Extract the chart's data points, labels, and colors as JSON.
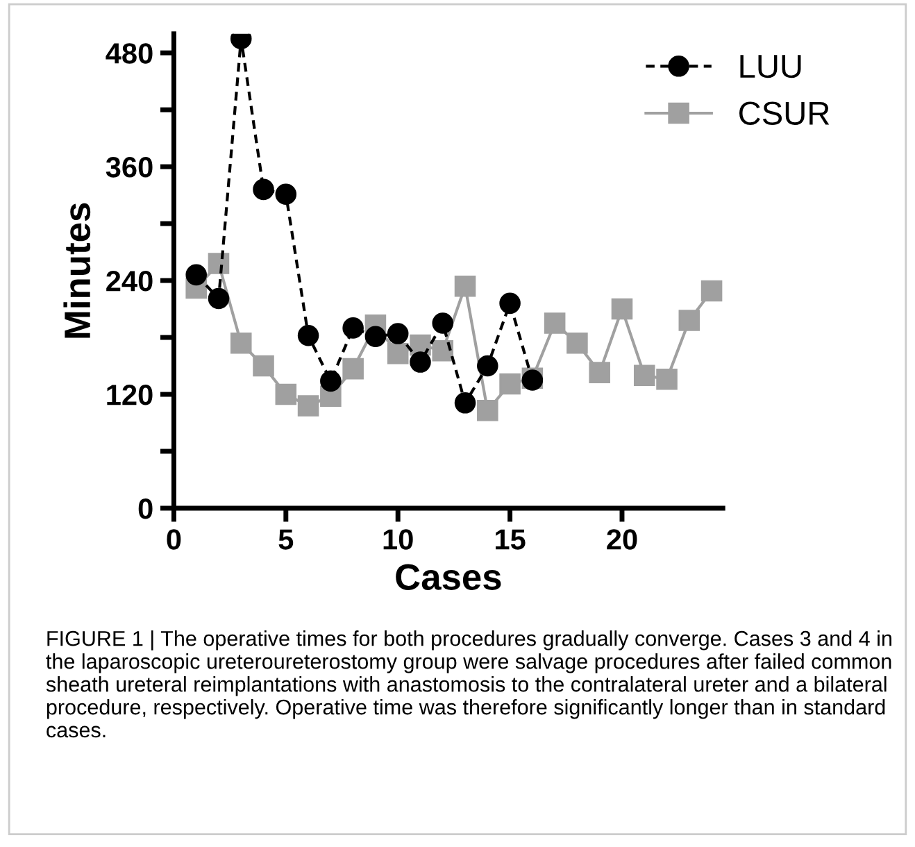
{
  "chart_data": {
    "type": "line",
    "xlabel": "Cases",
    "ylabel": "Minutes",
    "xlim": [
      0,
      24.5
    ],
    "xticks": [
      0,
      5,
      10,
      15,
      20
    ],
    "ylim": [
      0,
      500
    ],
    "yticks": [
      0,
      {
        "value": 60,
        "label": null
      },
      120,
      {
        "value": 180,
        "label": null
      },
      240,
      {
        "value": 300,
        "label": null
      },
      360,
      {
        "value": 420,
        "label": null
      },
      480
    ],
    "legend": "top right",
    "grid": false,
    "series": [
      {
        "name": "LUU",
        "color": "#000000",
        "marker": "circle",
        "line_style": "dashed",
        "x": [
          1,
          2,
          3,
          4,
          5,
          6,
          7,
          8,
          9,
          10,
          11,
          12,
          13,
          14,
          15,
          16
        ],
        "values": [
          246,
          221,
          495,
          336,
          331,
          182,
          134,
          190,
          181,
          184,
          154,
          195,
          111,
          150,
          216,
          135
        ]
      },
      {
        "name": "CSUR",
        "color": "#a0a0a0",
        "marker": "square",
        "line_style": "solid",
        "x": [
          1,
          2,
          3,
          4,
          5,
          6,
          7,
          8,
          9,
          10,
          11,
          12,
          13,
          14,
          15,
          16,
          17,
          18,
          19,
          20,
          21,
          22,
          23,
          24
        ],
        "values": [
          232,
          258,
          174,
          150,
          120,
          108,
          118,
          147,
          193,
          163,
          172,
          166,
          234,
          103,
          131,
          137,
          195,
          174,
          143,
          210,
          140,
          136,
          198,
          229
        ]
      }
    ],
    "annotations": [
      "FIGURE 1 | The operative times for both procedures gradually converge. Cases 3 and 4 in the laparoscopic ureteroureterostomy group were salvage procedures after failed common sheath ureteral reimplantations with anastomosis to the contralateral ureter and a bilateral procedure, respectively. Operative time was therefore significantly longer than in standard cases."
    ]
  }
}
